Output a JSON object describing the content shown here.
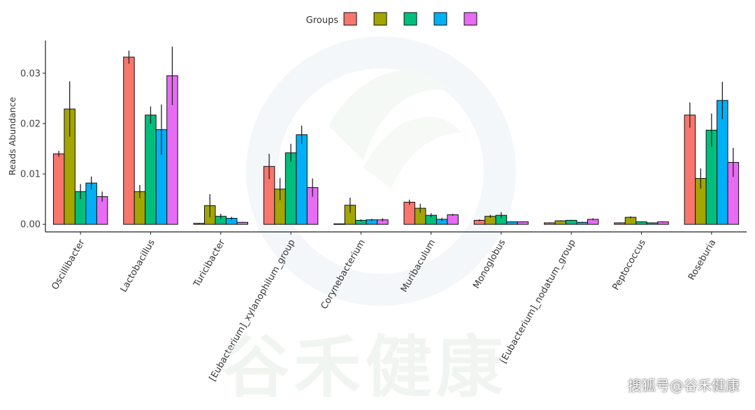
{
  "chart_data": {
    "type": "bar",
    "title": "",
    "xlabel": "",
    "ylabel": "Reads Abundance",
    "ylim": [
      -0.0015,
      0.0365
    ],
    "yticks": [
      0.0,
      0.01,
      0.02,
      0.03
    ],
    "ytick_labels": [
      "0.00",
      "0.01",
      "0.02",
      "0.03"
    ],
    "grid": false,
    "legend": {
      "title": "Groups",
      "placement": "top-center"
    },
    "categories": [
      "Oscillibacter",
      "Lactobacillus",
      "Turicibacter",
      "[Eubacterium]_xylanophilum_group",
      "Corynebacterium",
      "Muribaculum",
      "Monoglobus",
      "[Eubacterium]_nodatum_group",
      "Peptococcus",
      "Roseburia"
    ],
    "series": [
      {
        "color": "#F8766D",
        "values": [
          0.014,
          0.0332,
          0.0002,
          0.0115,
          0.0001,
          0.0044,
          0.0008,
          0.0003,
          0.0003,
          0.0217
        ],
        "error": [
          0.0006,
          0.0013,
          0.0001,
          0.0025,
          0.0001,
          0.0005,
          0.0002,
          0.0001,
          0.0001,
          0.0025
        ]
      },
      {
        "color": "#A3A500",
        "values": [
          0.0229,
          0.0065,
          0.0037,
          0.007,
          0.0038,
          0.0032,
          0.0016,
          0.0007,
          0.0014,
          0.0091
        ],
        "error": [
          0.0055,
          0.0013,
          0.0023,
          0.0022,
          0.0015,
          0.0009,
          0.0003,
          0.0001,
          0.0002,
          0.002
        ]
      },
      {
        "color": "#00BF7D",
        "values": [
          0.0065,
          0.0217,
          0.0016,
          0.0142,
          0.0008,
          0.0018,
          0.0018,
          0.0008,
          0.0005,
          0.0187
        ],
        "error": [
          0.0015,
          0.0017,
          0.0005,
          0.0018,
          0.0002,
          0.0004,
          0.0006,
          0.0001,
          0.0001,
          0.0033
        ]
      },
      {
        "color": "#00B0F6",
        "values": [
          0.0082,
          0.0188,
          0.0012,
          0.0178,
          0.0009,
          0.001,
          0.0005,
          0.0004,
          0.0003,
          0.0246
        ],
        "error": [
          0.0013,
          0.005,
          0.0003,
          0.0018,
          0.0002,
          0.0003,
          0.0001,
          0.0001,
          0.0001,
          0.0037
        ]
      },
      {
        "color": "#E76BF3",
        "values": [
          0.0055,
          0.0295,
          0.0004,
          0.0073,
          0.0009,
          0.0019,
          0.0005,
          0.001,
          0.0005,
          0.0123
        ],
        "error": [
          0.001,
          0.0058,
          0.0001,
          0.0018,
          0.0003,
          0.0002,
          0.0001,
          0.0002,
          0.0001,
          0.0029
        ]
      }
    ]
  },
  "watermark": {
    "text": "谷禾健康"
  },
  "source_credit": "搜狐号@谷禾健康"
}
